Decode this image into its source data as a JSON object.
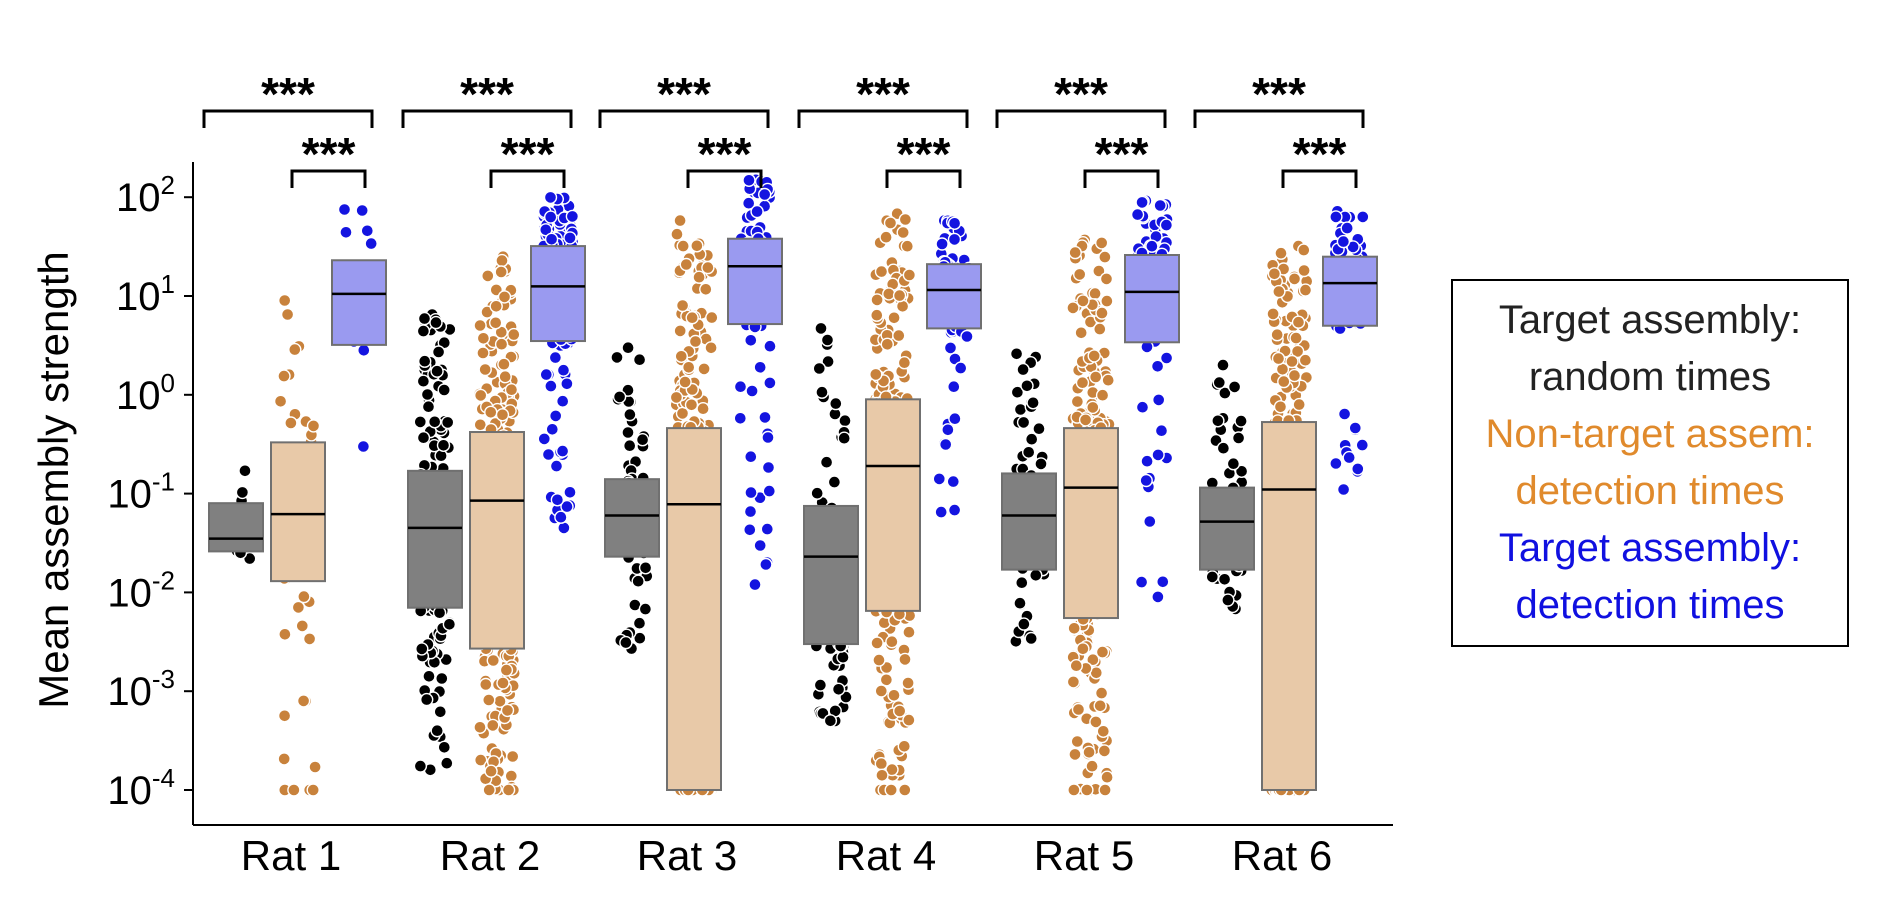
{
  "chart_data": {
    "type": "box",
    "title": "",
    "xlabel": "",
    "ylabel": "Mean assembly strength",
    "yscale": "log",
    "ylim": [
      5e-05,
      250
    ],
    "yticks": [
      {
        "value": 0.0001,
        "base": "10",
        "exp": "-4"
      },
      {
        "value": 0.001,
        "base": "10",
        "exp": "-3"
      },
      {
        "value": 0.01,
        "base": "10",
        "exp": "-2"
      },
      {
        "value": 0.1,
        "base": "10",
        "exp": "-1"
      },
      {
        "value": 1,
        "base": "10",
        "exp": "0"
      },
      {
        "value": 10,
        "base": "10",
        "exp": "1"
      },
      {
        "value": 100,
        "base": "10",
        "exp": "2"
      }
    ],
    "categories": [
      "Rat 1",
      "Rat 2",
      "Rat 3",
      "Rat 4",
      "Rat 5",
      "Rat 6"
    ],
    "significance_label": "***",
    "legend": {
      "position": "right",
      "entries": [
        {
          "lines": [
            "Target assembly:",
            "random times"
          ],
          "color": "#222222"
        },
        {
          "lines": [
            "Non-target assem:",
            "detection times"
          ],
          "color": "#e08a2c"
        },
        {
          "lines": [
            "Target assembly:",
            "detection times"
          ],
          "color": "#1010e0"
        }
      ]
    },
    "series": [
      {
        "name": "Target assembly: random times",
        "box_color": "#808080",
        "point_color": "#000000",
        "boxes": [
          {
            "q1": 0.026,
            "median": 0.035,
            "q3": 0.08,
            "min": 0.022,
            "max": 0.17
          },
          {
            "q1": 0.007,
            "median": 0.045,
            "q3": 0.17,
            "min": 0.00016,
            "max": 6.5
          },
          {
            "q1": 0.023,
            "median": 0.06,
            "q3": 0.14,
            "min": 0.0027,
            "max": 3.0
          },
          {
            "q1": 0.003,
            "median": 0.023,
            "q3": 0.075,
            "min": 0.0005,
            "max": 4.7
          },
          {
            "q1": 0.017,
            "median": 0.06,
            "q3": 0.16,
            "min": 0.0032,
            "max": 2.6
          },
          {
            "q1": 0.017,
            "median": 0.052,
            "q3": 0.115,
            "min": 0.0068,
            "max": 2.0
          }
        ]
      },
      {
        "name": "Non-target assem: detection times",
        "box_color": "#e8c9a8",
        "point_color": "#c8823c",
        "boxes": [
          {
            "q1": 0.013,
            "median": 0.062,
            "q3": 0.33,
            "min": 0.0001,
            "max": 9.0
          },
          {
            "q1": 0.0027,
            "median": 0.085,
            "q3": 0.42,
            "min": 0.0001,
            "max": 25
          },
          {
            "q1": 0.0001,
            "median": 0.078,
            "q3": 0.46,
            "min": 0.0001,
            "max": 58
          },
          {
            "q1": 0.0065,
            "median": 0.19,
            "q3": 0.9,
            "min": 0.0001,
            "max": 68
          },
          {
            "q1": 0.0055,
            "median": 0.115,
            "q3": 0.46,
            "min": 0.0001,
            "max": 37
          },
          {
            "q1": 0.0001,
            "median": 0.11,
            "q3": 0.53,
            "min": 0.0001,
            "max": 32
          }
        ]
      },
      {
        "name": "Target assembly: detection times",
        "box_color": "#9a9af0",
        "point_color": "#1414e0",
        "boxes": [
          {
            "q1": 3.2,
            "median": 10.5,
            "q3": 23,
            "min": 0.3,
            "max": 75
          },
          {
            "q1": 3.5,
            "median": 12.5,
            "q3": 32,
            "min": 0.045,
            "max": 100
          },
          {
            "q1": 5.2,
            "median": 20,
            "q3": 38,
            "min": 0.012,
            "max": 150
          },
          {
            "q1": 4.7,
            "median": 11.5,
            "q3": 21,
            "min": 0.065,
            "max": 58
          },
          {
            "q1": 3.4,
            "median": 11,
            "q3": 26,
            "min": 0.009,
            "max": 92
          },
          {
            "q1": 5.0,
            "median": 13.5,
            "q3": 25,
            "min": 0.11,
            "max": 72
          }
        ]
      }
    ]
  }
}
